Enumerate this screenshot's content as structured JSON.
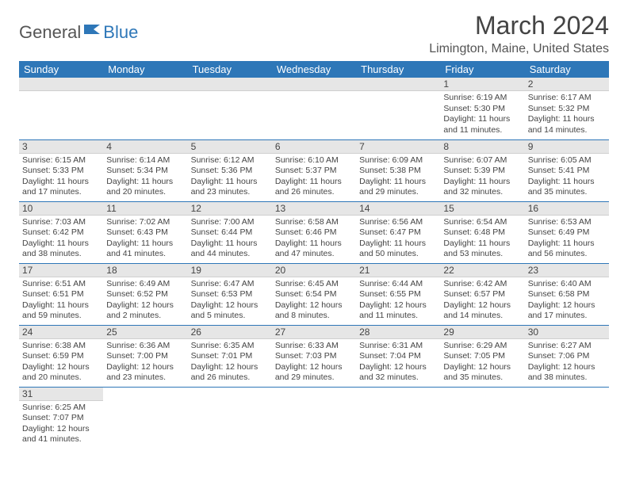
{
  "logo": {
    "general": "General",
    "blue": "Blue"
  },
  "title": "March 2024",
  "location": "Limington, Maine, United States",
  "colors": {
    "header_bg": "#2e77b8",
    "header_fg": "#ffffff",
    "daynum_bg": "#e6e6e6",
    "border": "#2e77b8"
  },
  "weekdays": [
    "Sunday",
    "Monday",
    "Tuesday",
    "Wednesday",
    "Thursday",
    "Friday",
    "Saturday"
  ],
  "weeks": [
    [
      null,
      null,
      null,
      null,
      null,
      {
        "n": "1",
        "sr": "Sunrise: 6:19 AM",
        "ss": "Sunset: 5:30 PM",
        "dl": "Daylight: 11 hours and 11 minutes."
      },
      {
        "n": "2",
        "sr": "Sunrise: 6:17 AM",
        "ss": "Sunset: 5:32 PM",
        "dl": "Daylight: 11 hours and 14 minutes."
      }
    ],
    [
      {
        "n": "3",
        "sr": "Sunrise: 6:15 AM",
        "ss": "Sunset: 5:33 PM",
        "dl": "Daylight: 11 hours and 17 minutes."
      },
      {
        "n": "4",
        "sr": "Sunrise: 6:14 AM",
        "ss": "Sunset: 5:34 PM",
        "dl": "Daylight: 11 hours and 20 minutes."
      },
      {
        "n": "5",
        "sr": "Sunrise: 6:12 AM",
        "ss": "Sunset: 5:36 PM",
        "dl": "Daylight: 11 hours and 23 minutes."
      },
      {
        "n": "6",
        "sr": "Sunrise: 6:10 AM",
        "ss": "Sunset: 5:37 PM",
        "dl": "Daylight: 11 hours and 26 minutes."
      },
      {
        "n": "7",
        "sr": "Sunrise: 6:09 AM",
        "ss": "Sunset: 5:38 PM",
        "dl": "Daylight: 11 hours and 29 minutes."
      },
      {
        "n": "8",
        "sr": "Sunrise: 6:07 AM",
        "ss": "Sunset: 5:39 PM",
        "dl": "Daylight: 11 hours and 32 minutes."
      },
      {
        "n": "9",
        "sr": "Sunrise: 6:05 AM",
        "ss": "Sunset: 5:41 PM",
        "dl": "Daylight: 11 hours and 35 minutes."
      }
    ],
    [
      {
        "n": "10",
        "sr": "Sunrise: 7:03 AM",
        "ss": "Sunset: 6:42 PM",
        "dl": "Daylight: 11 hours and 38 minutes."
      },
      {
        "n": "11",
        "sr": "Sunrise: 7:02 AM",
        "ss": "Sunset: 6:43 PM",
        "dl": "Daylight: 11 hours and 41 minutes."
      },
      {
        "n": "12",
        "sr": "Sunrise: 7:00 AM",
        "ss": "Sunset: 6:44 PM",
        "dl": "Daylight: 11 hours and 44 minutes."
      },
      {
        "n": "13",
        "sr": "Sunrise: 6:58 AM",
        "ss": "Sunset: 6:46 PM",
        "dl": "Daylight: 11 hours and 47 minutes."
      },
      {
        "n": "14",
        "sr": "Sunrise: 6:56 AM",
        "ss": "Sunset: 6:47 PM",
        "dl": "Daylight: 11 hours and 50 minutes."
      },
      {
        "n": "15",
        "sr": "Sunrise: 6:54 AM",
        "ss": "Sunset: 6:48 PM",
        "dl": "Daylight: 11 hours and 53 minutes."
      },
      {
        "n": "16",
        "sr": "Sunrise: 6:53 AM",
        "ss": "Sunset: 6:49 PM",
        "dl": "Daylight: 11 hours and 56 minutes."
      }
    ],
    [
      {
        "n": "17",
        "sr": "Sunrise: 6:51 AM",
        "ss": "Sunset: 6:51 PM",
        "dl": "Daylight: 11 hours and 59 minutes."
      },
      {
        "n": "18",
        "sr": "Sunrise: 6:49 AM",
        "ss": "Sunset: 6:52 PM",
        "dl": "Daylight: 12 hours and 2 minutes."
      },
      {
        "n": "19",
        "sr": "Sunrise: 6:47 AM",
        "ss": "Sunset: 6:53 PM",
        "dl": "Daylight: 12 hours and 5 minutes."
      },
      {
        "n": "20",
        "sr": "Sunrise: 6:45 AM",
        "ss": "Sunset: 6:54 PM",
        "dl": "Daylight: 12 hours and 8 minutes."
      },
      {
        "n": "21",
        "sr": "Sunrise: 6:44 AM",
        "ss": "Sunset: 6:55 PM",
        "dl": "Daylight: 12 hours and 11 minutes."
      },
      {
        "n": "22",
        "sr": "Sunrise: 6:42 AM",
        "ss": "Sunset: 6:57 PM",
        "dl": "Daylight: 12 hours and 14 minutes."
      },
      {
        "n": "23",
        "sr": "Sunrise: 6:40 AM",
        "ss": "Sunset: 6:58 PM",
        "dl": "Daylight: 12 hours and 17 minutes."
      }
    ],
    [
      {
        "n": "24",
        "sr": "Sunrise: 6:38 AM",
        "ss": "Sunset: 6:59 PM",
        "dl": "Daylight: 12 hours and 20 minutes."
      },
      {
        "n": "25",
        "sr": "Sunrise: 6:36 AM",
        "ss": "Sunset: 7:00 PM",
        "dl": "Daylight: 12 hours and 23 minutes."
      },
      {
        "n": "26",
        "sr": "Sunrise: 6:35 AM",
        "ss": "Sunset: 7:01 PM",
        "dl": "Daylight: 12 hours and 26 minutes."
      },
      {
        "n": "27",
        "sr": "Sunrise: 6:33 AM",
        "ss": "Sunset: 7:03 PM",
        "dl": "Daylight: 12 hours and 29 minutes."
      },
      {
        "n": "28",
        "sr": "Sunrise: 6:31 AM",
        "ss": "Sunset: 7:04 PM",
        "dl": "Daylight: 12 hours and 32 minutes."
      },
      {
        "n": "29",
        "sr": "Sunrise: 6:29 AM",
        "ss": "Sunset: 7:05 PM",
        "dl": "Daylight: 12 hours and 35 minutes."
      },
      {
        "n": "30",
        "sr": "Sunrise: 6:27 AM",
        "ss": "Sunset: 7:06 PM",
        "dl": "Daylight: 12 hours and 38 minutes."
      }
    ],
    [
      {
        "n": "31",
        "sr": "Sunrise: 6:25 AM",
        "ss": "Sunset: 7:07 PM",
        "dl": "Daylight: 12 hours and 41 minutes."
      },
      null,
      null,
      null,
      null,
      null,
      null
    ]
  ]
}
